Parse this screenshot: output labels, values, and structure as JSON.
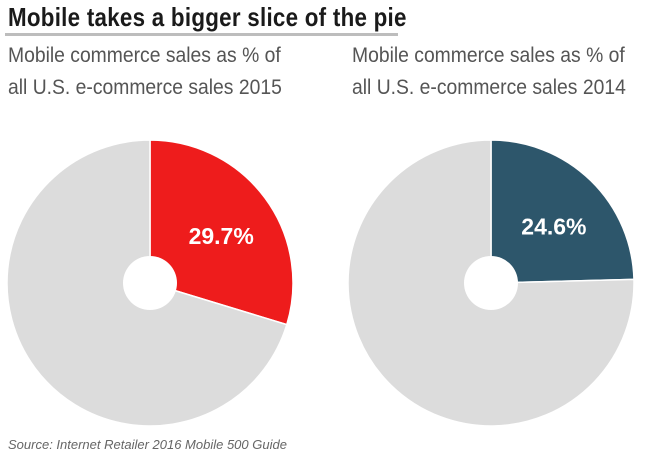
{
  "chart_data": [
    {
      "type": "pie",
      "title": "Mobile commerce sales as % of all U.S. e-commerce sales 2015",
      "slices": [
        {
          "label": "29.7%",
          "value": 29.7,
          "color": "#ee1c1c"
        },
        {
          "value": 70.3,
          "color": "#dcdcdc"
        }
      ],
      "donut": true
    },
    {
      "type": "pie",
      "title": "Mobile commerce sales as % of all U.S. e-commerce sales 2014",
      "slices": [
        {
          "label": "24.6%",
          "value": 24.6,
          "color": "#2d566b"
        },
        {
          "value": 75.4,
          "color": "#dcdcdc"
        }
      ],
      "donut": true
    }
  ],
  "header": {
    "title": "Mobile takes a bigger slice of the pie"
  },
  "footer": {
    "source": "Source: Internet Retailer 2016 Mobile 500 Guide"
  }
}
